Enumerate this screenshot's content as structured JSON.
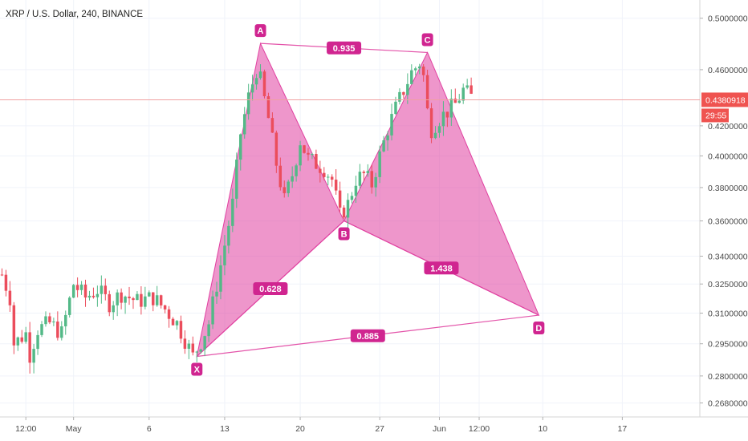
{
  "chart_data": {
    "type": "candlestick",
    "title": "XRP / U.S. Dollar, 240, BINANCE",
    "x_ticks": [
      "12:00",
      "May",
      "6",
      "13",
      "20",
      "27",
      "Jun",
      "12:00",
      "10",
      "17"
    ],
    "x_tick_index": [
      6,
      18,
      37,
      56,
      75,
      95,
      110,
      120,
      136,
      156
    ],
    "y_ticks": [
      0.5,
      0.46,
      0.42,
      0.4,
      0.38,
      0.36,
      0.34,
      0.325,
      0.31,
      0.295,
      0.28,
      0.268
    ],
    "y_tick_labels": [
      "0.5000000",
      "0.4600000",
      "0.4200000",
      "0.4000000",
      "0.3800000",
      "0.3600000",
      "0.3400000",
      "0.3250000",
      "0.3100000",
      "0.2950000",
      "0.2800000",
      "0.2680000"
    ],
    "scale": "log",
    "ylim": [
      0.262,
      0.515
    ],
    "bars_total": 176,
    "current_price": 0.4380918,
    "current_price_label": "0.4380918",
    "countdown": "29:55",
    "colors": {
      "up": "#53b987",
      "down": "#eb4d5c",
      "pattern": "#e040a0",
      "price_line": "#f0a0a0"
    },
    "series": [
      {
        "name": "close",
        "points": [
          [
            0,
            0.33
          ],
          [
            2,
            0.318
          ],
          [
            3,
            0.295
          ],
          [
            6,
            0.3
          ],
          [
            7,
            0.29
          ],
          [
            9,
            0.302
          ],
          [
            12,
            0.305
          ],
          [
            15,
            0.3
          ],
          [
            18,
            0.325
          ],
          [
            21,
            0.318
          ],
          [
            24,
            0.322
          ],
          [
            27,
            0.315
          ],
          [
            30,
            0.32
          ],
          [
            34,
            0.316
          ],
          [
            38,
            0.318
          ],
          [
            41,
            0.312
          ],
          [
            44,
            0.305
          ],
          [
            46,
            0.297
          ],
          [
            48,
            0.289
          ],
          [
            50,
            0.296
          ],
          [
            52,
            0.305
          ],
          [
            55,
            0.335
          ],
          [
            58,
            0.37
          ],
          [
            60,
            0.415
          ],
          [
            62,
            0.44
          ],
          [
            64,
            0.46
          ],
          [
            65,
            0.452
          ],
          [
            67,
            0.425
          ],
          [
            69,
            0.395
          ],
          [
            71,
            0.372
          ],
          [
            73,
            0.388
          ],
          [
            75,
            0.41
          ],
          [
            77,
            0.398
          ],
          [
            79,
            0.395
          ],
          [
            81,
            0.392
          ],
          [
            83,
            0.385
          ],
          [
            85,
            0.363
          ],
          [
            87,
            0.37
          ],
          [
            89,
            0.385
          ],
          [
            91,
            0.388
          ],
          [
            93,
            0.382
          ],
          [
            95,
            0.4
          ],
          [
            97,
            0.418
          ],
          [
            99,
            0.432
          ],
          [
            101,
            0.445
          ],
          [
            103,
            0.458
          ],
          [
            105,
            0.465
          ],
          [
            106,
            0.455
          ],
          [
            107,
            0.43
          ],
          [
            108,
            0.418
          ],
          [
            110,
            0.425
          ],
          [
            112,
            0.43
          ],
          [
            114,
            0.435
          ],
          [
            116,
            0.445
          ],
          [
            118,
            0.44
          ]
        ]
      }
    ],
    "pattern": {
      "points": [
        {
          "label": "X",
          "x": 49,
          "y": 0.289,
          "pos": "below"
        },
        {
          "label": "A",
          "x": 65,
          "y": 0.48,
          "pos": "above"
        },
        {
          "label": "B",
          "x": 86,
          "y": 0.36,
          "pos": "below"
        },
        {
          "label": "C",
          "x": 107,
          "y": 0.473,
          "pos": "above"
        },
        {
          "label": "D",
          "x": 135,
          "y": 0.309,
          "pos": "below"
        }
      ],
      "ratios": [
        {
          "label": "0.935",
          "from": "A",
          "to": "C"
        },
        {
          "label": "0.628",
          "from": "X",
          "to": "B"
        },
        {
          "label": "1.438",
          "from": "B",
          "to": "D"
        },
        {
          "label": "0.885",
          "from": "X",
          "to": "D"
        }
      ]
    }
  }
}
